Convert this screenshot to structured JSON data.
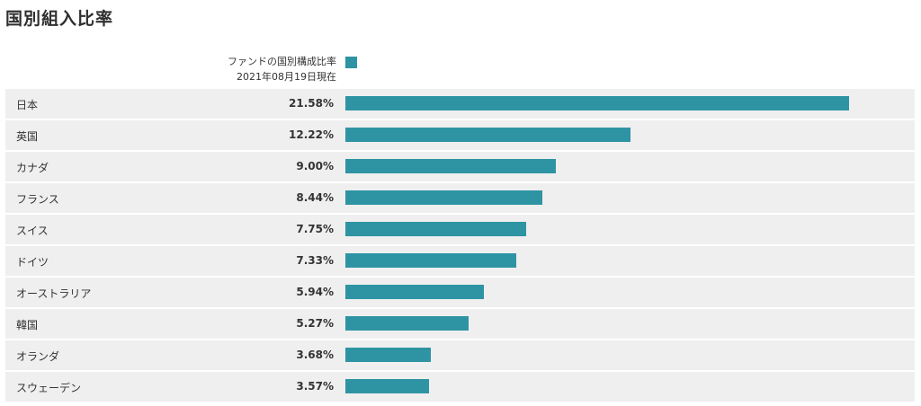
{
  "title": "国別組入比率",
  "legend": {
    "label": "ファンドの国別構成比率",
    "date": "2021年08月19日現在",
    "color": "#2e94a3"
  },
  "chart_data": {
    "type": "bar",
    "orientation": "horizontal",
    "title": "国別組入比率",
    "series": [
      {
        "name": "ファンドの国別構成比率",
        "values": [
          21.58,
          12.22,
          9.0,
          8.44,
          7.75,
          7.33,
          5.94,
          5.27,
          3.68,
          3.57
        ]
      }
    ],
    "categories": [
      "日本",
      "英国",
      "カナダ",
      "フランス",
      "スイス",
      "ドイツ",
      "オーストラリア",
      "韓国",
      "オランダ",
      "スウェーデン"
    ],
    "value_labels": [
      "21.58%",
      "12.22%",
      "9.00%",
      "8.44%",
      "7.75%",
      "7.33%",
      "5.94%",
      "5.27%",
      "3.68%",
      "3.57%"
    ],
    "unit": "%",
    "xlim": [
      0,
      21.58
    ],
    "bar_color": "#2e94a3",
    "row_background": "#efefef",
    "grid": false
  }
}
